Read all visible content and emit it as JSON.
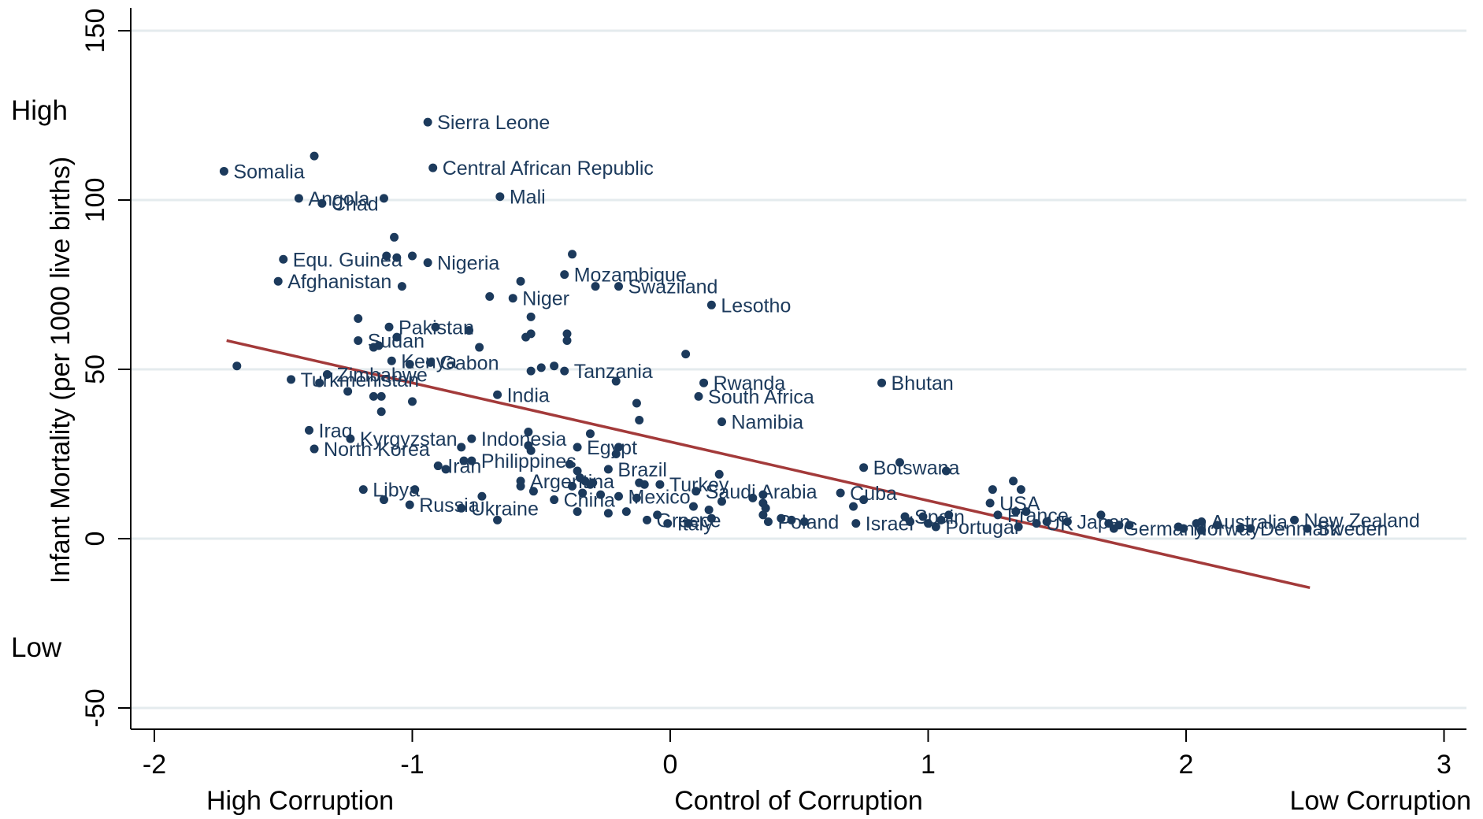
{
  "chart_data": {
    "type": "scatter",
    "title": "",
    "xlabel": "Control of Corruption",
    "ylabel": "Infant Mortality (per 1000 live births)",
    "xlim": [
      -2.1,
      3.05
    ],
    "ylim": [
      -57,
      158
    ],
    "x_ticks": [
      -2,
      -1,
      0,
      1,
      2,
      3
    ],
    "y_ticks": [
      -50,
      0,
      50,
      100,
      150
    ],
    "grid": "horizontal",
    "x_end_labels": {
      "left": "High Corruption",
      "right": "Low Corruption"
    },
    "y_end_labels": {
      "top": "High",
      "bottom": "Low"
    },
    "colors": {
      "point": "#1c3a5c",
      "fit_line": "#a33a3a",
      "grid": "#e4ebee"
    },
    "fit_line": {
      "x": [
        -1.72,
        2.48
      ],
      "y": [
        58.5,
        -14.5
      ]
    },
    "points": [
      {
        "x": -1.73,
        "y": 108.5,
        "label": "Somalia"
      },
      {
        "x": -1.38,
        "y": 113,
        "label": ""
      },
      {
        "x": -1.44,
        "y": 100.5,
        "label": "Angola"
      },
      {
        "x": -1.35,
        "y": 99,
        "label": "Chad"
      },
      {
        "x": -1.11,
        "y": 100.5,
        "label": ""
      },
      {
        "x": -0.94,
        "y": 123,
        "label": "Sierra Leone"
      },
      {
        "x": -0.92,
        "y": 109.5,
        "label": "Central African Republic"
      },
      {
        "x": -0.66,
        "y": 101,
        "label": "Mali"
      },
      {
        "x": -1.5,
        "y": 82.5,
        "label": "Equ. Guinea"
      },
      {
        "x": -1.52,
        "y": 76,
        "label": "Afghanistan"
      },
      {
        "x": -1.07,
        "y": 89,
        "label": ""
      },
      {
        "x": -1.1,
        "y": 83.5,
        "label": ""
      },
      {
        "x": -1.06,
        "y": 83,
        "label": ""
      },
      {
        "x": -1.0,
        "y": 83.5,
        "label": ""
      },
      {
        "x": -0.94,
        "y": 81.5,
        "label": "Nigeria"
      },
      {
        "x": -1.04,
        "y": 74.5,
        "label": ""
      },
      {
        "x": -0.38,
        "y": 84,
        "label": ""
      },
      {
        "x": -0.41,
        "y": 78,
        "label": "Mozambique"
      },
      {
        "x": -0.29,
        "y": 74.5,
        "label": ""
      },
      {
        "x": -0.2,
        "y": 74.5,
        "label": "Swaziland"
      },
      {
        "x": -0.58,
        "y": 76,
        "label": ""
      },
      {
        "x": -0.7,
        "y": 71.5,
        "label": ""
      },
      {
        "x": -0.61,
        "y": 71,
        "label": "Niger"
      },
      {
        "x": 0.16,
        "y": 69,
        "label": "Lesotho"
      },
      {
        "x": -1.21,
        "y": 65,
        "label": ""
      },
      {
        "x": -0.54,
        "y": 65.5,
        "label": ""
      },
      {
        "x": -1.09,
        "y": 62.5,
        "label": "Pakistan"
      },
      {
        "x": -1.06,
        "y": 59.5,
        "label": ""
      },
      {
        "x": -0.91,
        "y": 62.5,
        "label": ""
      },
      {
        "x": -0.78,
        "y": 61.5,
        "label": ""
      },
      {
        "x": -0.56,
        "y": 59.5,
        "label": ""
      },
      {
        "x": -0.54,
        "y": 60.5,
        "label": ""
      },
      {
        "x": -0.4,
        "y": 60.5,
        "label": ""
      },
      {
        "x": -0.4,
        "y": 58.5,
        "label": ""
      },
      {
        "x": -1.21,
        "y": 58.5,
        "label": "Sudan"
      },
      {
        "x": -1.15,
        "y": 56.5,
        "label": ""
      },
      {
        "x": -1.13,
        "y": 57,
        "label": ""
      },
      {
        "x": -0.74,
        "y": 56.5,
        "label": ""
      },
      {
        "x": -1.68,
        "y": 51,
        "label": ""
      },
      {
        "x": -1.08,
        "y": 52.5,
        "label": "Kenya"
      },
      {
        "x": -1.01,
        "y": 51.5,
        "label": ""
      },
      {
        "x": -0.93,
        "y": 52,
        "label": "Gabon"
      },
      {
        "x": 0.06,
        "y": 54.5,
        "label": ""
      },
      {
        "x": -0.54,
        "y": 49.5,
        "label": ""
      },
      {
        "x": -0.5,
        "y": 50.5,
        "label": ""
      },
      {
        "x": -0.45,
        "y": 51,
        "label": ""
      },
      {
        "x": -0.41,
        "y": 49.5,
        "label": "Tanzania"
      },
      {
        "x": -1.33,
        "y": 48.5,
        "label": "Zimbabwe"
      },
      {
        "x": -1.36,
        "y": 46,
        "label": ""
      },
      {
        "x": -1.47,
        "y": 47,
        "label": "Turkmenistan"
      },
      {
        "x": -0.21,
        "y": 46.5,
        "label": ""
      },
      {
        "x": 0.13,
        "y": 46,
        "label": "Rwanda"
      },
      {
        "x": 0.82,
        "y": 46,
        "label": "Bhutan"
      },
      {
        "x": -1.25,
        "y": 43.5,
        "label": ""
      },
      {
        "x": -1.15,
        "y": 42,
        "label": ""
      },
      {
        "x": -1.12,
        "y": 42,
        "label": ""
      },
      {
        "x": -0.67,
        "y": 42.5,
        "label": "India"
      },
      {
        "x": 0.11,
        "y": 42,
        "label": "South Africa"
      },
      {
        "x": -1.0,
        "y": 40.5,
        "label": ""
      },
      {
        "x": -0.13,
        "y": 40,
        "label": ""
      },
      {
        "x": -1.12,
        "y": 37.5,
        "label": ""
      },
      {
        "x": -0.12,
        "y": 35,
        "label": ""
      },
      {
        "x": 0.2,
        "y": 34.5,
        "label": "Namibia"
      },
      {
        "x": -1.4,
        "y": 32,
        "label": "Iraq"
      },
      {
        "x": -0.55,
        "y": 31.5,
        "label": ""
      },
      {
        "x": -0.31,
        "y": 31,
        "label": ""
      },
      {
        "x": -1.24,
        "y": 29.5,
        "label": "Kyrgyzstan"
      },
      {
        "x": -0.77,
        "y": 29.5,
        "label": "Indonesia"
      },
      {
        "x": -0.81,
        "y": 27,
        "label": ""
      },
      {
        "x": -1.38,
        "y": 26.5,
        "label": "North Korea"
      },
      {
        "x": -0.55,
        "y": 27.5,
        "label": ""
      },
      {
        "x": -0.54,
        "y": 26,
        "label": ""
      },
      {
        "x": -0.36,
        "y": 27,
        "label": "Egypt"
      },
      {
        "x": -0.2,
        "y": 27,
        "label": ""
      },
      {
        "x": -0.21,
        "y": 25,
        "label": ""
      },
      {
        "x": -0.8,
        "y": 23,
        "label": ""
      },
      {
        "x": -0.77,
        "y": 23,
        "label": "Philippines"
      },
      {
        "x": -0.9,
        "y": 21.5,
        "label": "Iran"
      },
      {
        "x": -0.87,
        "y": 20.5,
        "label": ""
      },
      {
        "x": -0.39,
        "y": 22,
        "label": ""
      },
      {
        "x": -0.36,
        "y": 20,
        "label": ""
      },
      {
        "x": -0.24,
        "y": 20.5,
        "label": "Brazil"
      },
      {
        "x": -0.35,
        "y": 18,
        "label": ""
      },
      {
        "x": -0.33,
        "y": 17,
        "label": ""
      },
      {
        "x": -0.31,
        "y": 16,
        "label": ""
      },
      {
        "x": -0.3,
        "y": 16.5,
        "label": ""
      },
      {
        "x": 0.19,
        "y": 19,
        "label": ""
      },
      {
        "x": 0.75,
        "y": 21,
        "label": "Botswana"
      },
      {
        "x": 0.89,
        "y": 22.5,
        "label": ""
      },
      {
        "x": 1.07,
        "y": 20,
        "label": ""
      },
      {
        "x": -0.58,
        "y": 17,
        "label": "Argentina"
      },
      {
        "x": -0.58,
        "y": 15.5,
        "label": ""
      },
      {
        "x": -0.53,
        "y": 14,
        "label": ""
      },
      {
        "x": -0.38,
        "y": 15.5,
        "label": ""
      },
      {
        "x": -0.34,
        "y": 13.5,
        "label": ""
      },
      {
        "x": -0.27,
        "y": 13,
        "label": ""
      },
      {
        "x": -0.2,
        "y": 12.5,
        "label": "Mexico"
      },
      {
        "x": -0.13,
        "y": 12,
        "label": ""
      },
      {
        "x": -0.12,
        "y": 16.5,
        "label": ""
      },
      {
        "x": -0.1,
        "y": 16,
        "label": ""
      },
      {
        "x": -0.04,
        "y": 16,
        "label": "Turkey"
      },
      {
        "x": 0.1,
        "y": 14,
        "label": "Saudi Arabia"
      },
      {
        "x": 0.2,
        "y": 11,
        "label": ""
      },
      {
        "x": 0.32,
        "y": 12,
        "label": ""
      },
      {
        "x": 0.36,
        "y": 13,
        "label": ""
      },
      {
        "x": 0.36,
        "y": 10.5,
        "label": ""
      },
      {
        "x": 0.37,
        "y": 9,
        "label": ""
      },
      {
        "x": 0.66,
        "y": 13.5,
        "label": "Cuba"
      },
      {
        "x": 0.75,
        "y": 11.5,
        "label": ""
      },
      {
        "x": -1.19,
        "y": 14.5,
        "label": "Libya"
      },
      {
        "x": -1.11,
        "y": 11.5,
        "label": ""
      },
      {
        "x": -0.99,
        "y": 14.5,
        "label": ""
      },
      {
        "x": -1.01,
        "y": 10,
        "label": "Russia"
      },
      {
        "x": -0.81,
        "y": 9,
        "label": "Ukraine"
      },
      {
        "x": -0.73,
        "y": 12.5,
        "label": ""
      },
      {
        "x": -0.67,
        "y": 5.5,
        "label": ""
      },
      {
        "x": -0.45,
        "y": 11.5,
        "label": "China"
      },
      {
        "x": -0.36,
        "y": 8,
        "label": ""
      },
      {
        "x": -0.24,
        "y": 7.5,
        "label": ""
      },
      {
        "x": -0.17,
        "y": 8,
        "label": ""
      },
      {
        "x": -0.09,
        "y": 5.5,
        "label": "Greece"
      },
      {
        "x": -0.05,
        "y": 7,
        "label": ""
      },
      {
        "x": -0.01,
        "y": 4.5,
        "label": "Italy"
      },
      {
        "x": 0.07,
        "y": 4.5,
        "label": ""
      },
      {
        "x": 0.09,
        "y": 9.5,
        "label": ""
      },
      {
        "x": 0.15,
        "y": 8.5,
        "label": ""
      },
      {
        "x": 0.16,
        "y": 6,
        "label": ""
      },
      {
        "x": 0.36,
        "y": 7,
        "label": ""
      },
      {
        "x": 0.38,
        "y": 5,
        "label": "Poland"
      },
      {
        "x": 0.43,
        "y": 6,
        "label": ""
      },
      {
        "x": 0.47,
        "y": 5.5,
        "label": ""
      },
      {
        "x": 0.52,
        "y": 5,
        "label": ""
      },
      {
        "x": 0.71,
        "y": 9.5,
        "label": ""
      },
      {
        "x": 0.72,
        "y": 4.5,
        "label": "Israel"
      },
      {
        "x": 0.91,
        "y": 6.5,
        "label": "Spain"
      },
      {
        "x": 0.93,
        "y": 5,
        "label": ""
      },
      {
        "x": 0.98,
        "y": 6.5,
        "label": ""
      },
      {
        "x": 1.0,
        "y": 4.5,
        "label": ""
      },
      {
        "x": 1.03,
        "y": 3.5,
        "label": "Portugal"
      },
      {
        "x": 1.05,
        "y": 5.5,
        "label": ""
      },
      {
        "x": 1.08,
        "y": 7,
        "label": ""
      },
      {
        "x": 1.24,
        "y": 10.5,
        "label": "USA"
      },
      {
        "x": 1.25,
        "y": 14.5,
        "label": ""
      },
      {
        "x": 1.27,
        "y": 7,
        "label": "France"
      },
      {
        "x": 1.33,
        "y": 17,
        "label": ""
      },
      {
        "x": 1.36,
        "y": 14.5,
        "label": ""
      },
      {
        "x": 1.34,
        "y": 8,
        "label": ""
      },
      {
        "x": 1.38,
        "y": 8,
        "label": ""
      },
      {
        "x": 1.35,
        "y": 3.5,
        "label": ""
      },
      {
        "x": 1.42,
        "y": 4.5,
        "label": "UK"
      },
      {
        "x": 1.46,
        "y": 5,
        "label": ""
      },
      {
        "x": 1.54,
        "y": 5,
        "label": "Japan"
      },
      {
        "x": 1.67,
        "y": 7,
        "label": ""
      },
      {
        "x": 1.7,
        "y": 4.5,
        "label": ""
      },
      {
        "x": 1.72,
        "y": 3,
        "label": "Germany"
      },
      {
        "x": 1.74,
        "y": 4,
        "label": ""
      },
      {
        "x": 1.78,
        "y": 4,
        "label": ""
      },
      {
        "x": 1.97,
        "y": 3.5,
        "label": ""
      },
      {
        "x": 1.99,
        "y": 3,
        "label": "Norway"
      },
      {
        "x": 2.04,
        "y": 4.5,
        "label": ""
      },
      {
        "x": 2.06,
        "y": 5,
        "label": "Australia"
      },
      {
        "x": 2.06,
        "y": 2.5,
        "label": ""
      },
      {
        "x": 2.12,
        "y": 4,
        "label": ""
      },
      {
        "x": 2.21,
        "y": 3,
        "label": ""
      },
      {
        "x": 2.25,
        "y": 3,
        "label": "Denmark"
      },
      {
        "x": 2.42,
        "y": 5.5,
        "label": "New Zealand"
      },
      {
        "x": 2.47,
        "y": 3,
        "label": "Sweden"
      }
    ]
  }
}
